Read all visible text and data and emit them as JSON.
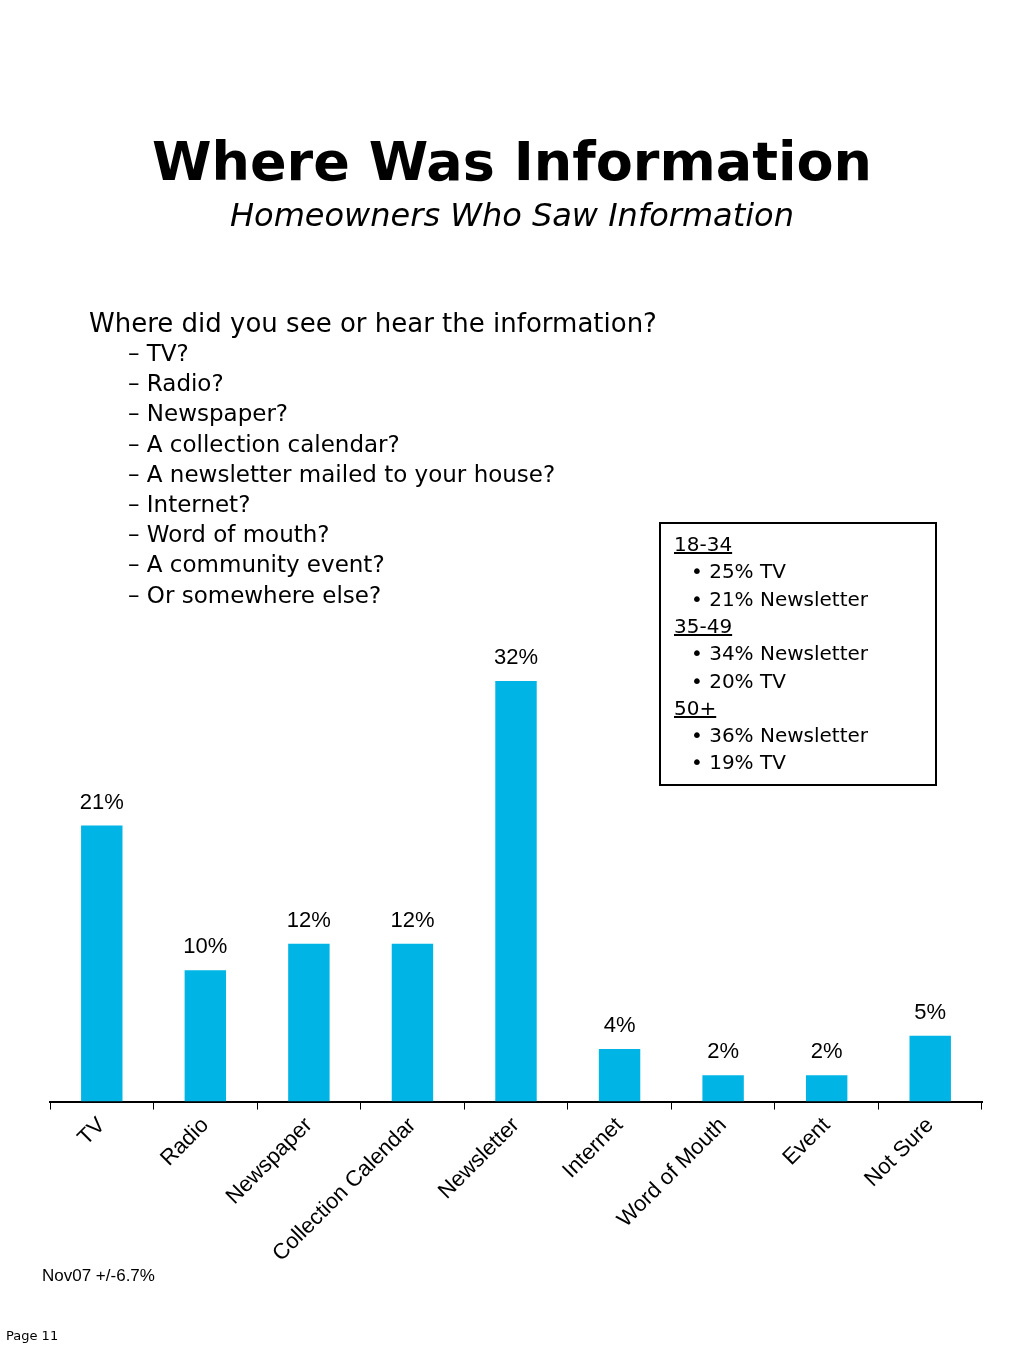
{
  "chart_data": {
    "type": "bar",
    "title": "Where Was Information",
    "subtitle": "Homeowners Who Saw Information",
    "categories": [
      "TV",
      "Radio",
      "Newspaper",
      "Collection Calendar",
      "Newsletter",
      "Internet",
      "Word of Mouth",
      "Event",
      "Not Sure"
    ],
    "values": [
      21,
      10,
      12,
      12,
      32,
      4,
      2,
      2,
      5
    ],
    "value_labels": [
      "21%",
      "10%",
      "12%",
      "12%",
      "32%",
      "4%",
      "2%",
      "2%",
      "5%"
    ],
    "color": "#00b4e6",
    "grid": false,
    "legend": false,
    "annotations": [
      "Where did you see or hear the information?",
      "–  TV?",
      "–  Radio?",
      "–  Newspaper?",
      "–  A collection calendar?",
      "–  A newsletter mailed to your house?",
      "–  Internet?",
      "–  Word of mouth?",
      "–  A community event?",
      "–  Or somewhere else?",
      "18-34",
      "• 25% TV",
      "• 21% Newsletter",
      "35-49",
      "• 34% Newsletter",
      "• 20% TV",
      "50+",
      "• 36% Newsletter",
      "• 19% TV",
      "Nov07 +/-6.7%",
      "Page 11"
    ]
  }
}
